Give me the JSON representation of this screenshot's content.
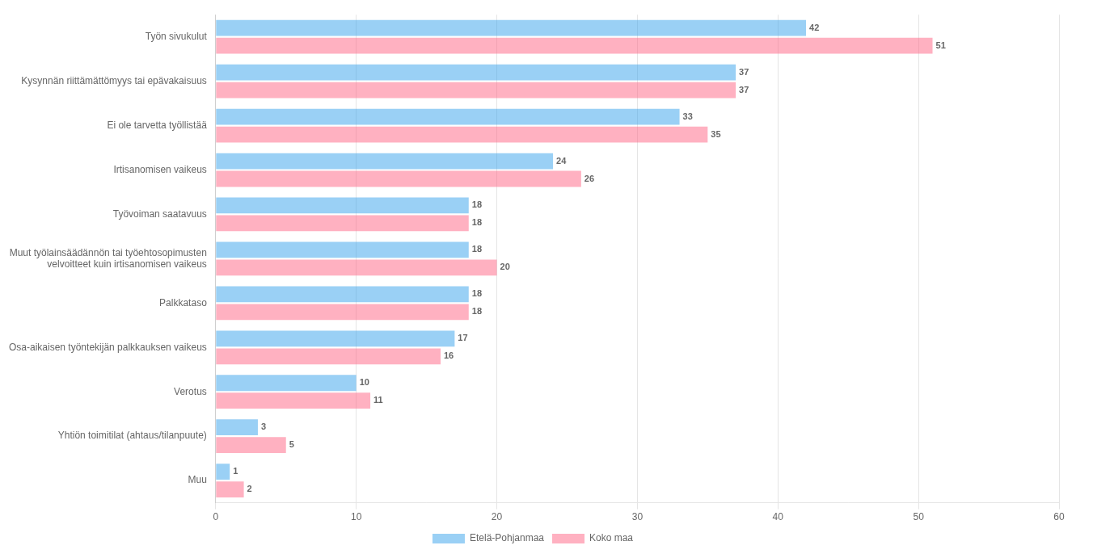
{
  "chart_data": {
    "type": "bar",
    "orientation": "horizontal",
    "categories": [
      "Työn sivukulut",
      "Kysynnän riittämättömyys tai epävakaisuus",
      "Ei ole tarvetta työllistää",
      "Irtisanomisen vaikeus",
      "Työvoiman saatavuus",
      "Muut työlainsäädännön tai työehtosopimusten\nvelvoitteet kuin irtisanomisen vaikeus",
      "Palkkataso",
      "Osa-aikaisen työntekijän palkkauksen vaikeus",
      "Verotus",
      "Yhtiön toimitilat (ahtaus/tilanpuute)",
      "Muu"
    ],
    "series": [
      {
        "name": "Etelä-Pohjanmaa",
        "values": [
          42,
          37,
          33,
          24,
          18,
          18,
          18,
          17,
          10,
          3,
          1
        ]
      },
      {
        "name": "Koko maa",
        "values": [
          51,
          37,
          35,
          26,
          18,
          20,
          18,
          16,
          11,
          5,
          2
        ]
      }
    ],
    "xlim": [
      0,
      60
    ],
    "xticks": [
      0,
      10,
      20,
      30,
      40,
      50,
      60
    ],
    "grid": true,
    "legend": "bottom",
    "data_labels": true
  }
}
